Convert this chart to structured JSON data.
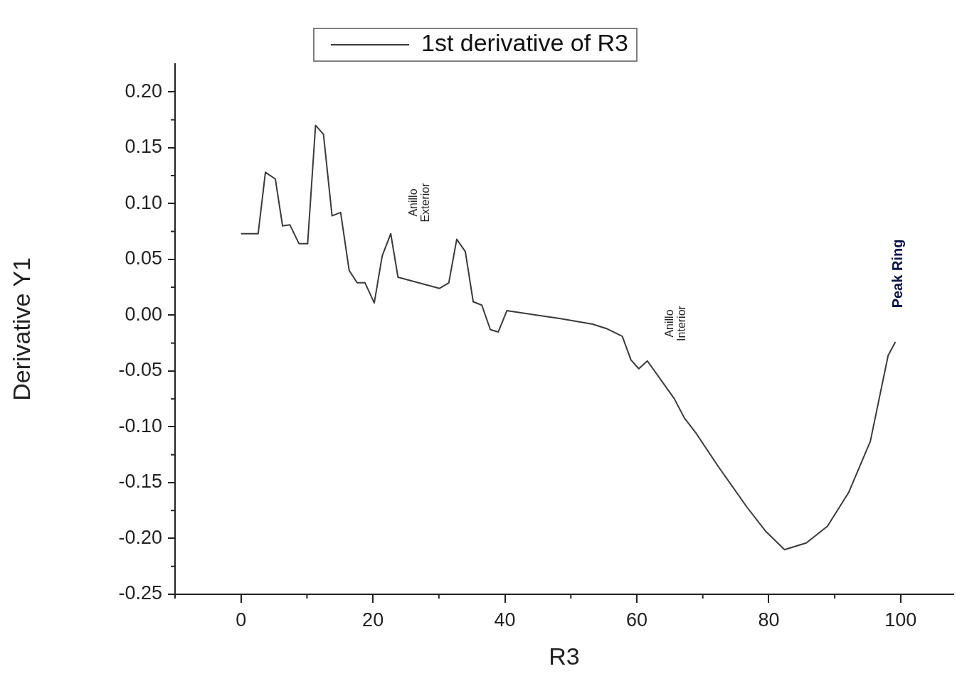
{
  "chart_data": {
    "type": "line",
    "xlabel": "R3",
    "ylabel": "Derivative Y1",
    "legend": "top",
    "x": [
      0,
      2.6,
      3.7,
      5.2,
      6.3,
      7.4,
      8.8,
      10.1,
      11.3,
      12.5,
      13.8,
      15.1,
      16.4,
      17.6,
      18.8,
      20.2,
      21.4,
      22.7,
      23.8,
      30.1,
      31.5,
      32.7,
      34.0,
      35.2,
      36.5,
      37.8,
      39.0,
      40.3,
      48.3,
      53.3,
      55.4,
      57.8,
      59.1,
      60.3,
      61.6,
      65.7,
      67.2,
      68.9,
      72.4,
      76.7,
      79.6,
      82.4,
      85.7,
      88.9,
      92.1,
      95.4,
      98.1,
      99.2
    ],
    "series": [
      {
        "name": "1st derivative of R3",
        "color": "#3a3a3a",
        "values": [
          0.073,
          0.073,
          0.128,
          0.122,
          0.08,
          0.081,
          0.064,
          0.064,
          0.17,
          0.162,
          0.089,
          0.092,
          0.04,
          0.029,
          0.029,
          0.011,
          0.053,
          0.073,
          0.034,
          0.024,
          0.029,
          0.068,
          0.057,
          0.012,
          0.009,
          -0.013,
          -0.015,
          0.004,
          -0.003,
          -0.008,
          -0.012,
          -0.019,
          -0.04,
          -0.048,
          -0.041,
          -0.075,
          -0.092,
          -0.105,
          -0.136,
          -0.172,
          -0.194,
          -0.21,
          -0.204,
          -0.189,
          -0.159,
          -0.113,
          -0.036,
          -0.024
        ]
      }
    ],
    "xlim": [
      -10,
      108
    ],
    "xticks": [
      0,
      20,
      40,
      60,
      80,
      100
    ],
    "ylim": [
      -0.25,
      0.225
    ],
    "yticks": [
      {
        "value": -0.25,
        "label": "-0.25"
      },
      {
        "value": -0.2,
        "label": "-0.20"
      },
      {
        "value": -0.15,
        "label": "-0.15"
      },
      {
        "value": -0.1,
        "label": "-0.10"
      },
      {
        "value": -0.05,
        "label": "-0.05"
      },
      {
        "value": 0,
        "label": "0.00"
      },
      {
        "value": 0.05,
        "label": "0.05"
      },
      {
        "value": 0.1,
        "label": "0.10"
      },
      {
        "value": 0.15,
        "label": "0.15"
      },
      {
        "value": 0.2,
        "label": "0.20"
      }
    ],
    "grid": false,
    "marker": "none",
    "line_style": "solid",
    "annotations": [
      "Anillo Exterior",
      "Anillo Interior",
      "Peak Ring"
    ]
  }
}
